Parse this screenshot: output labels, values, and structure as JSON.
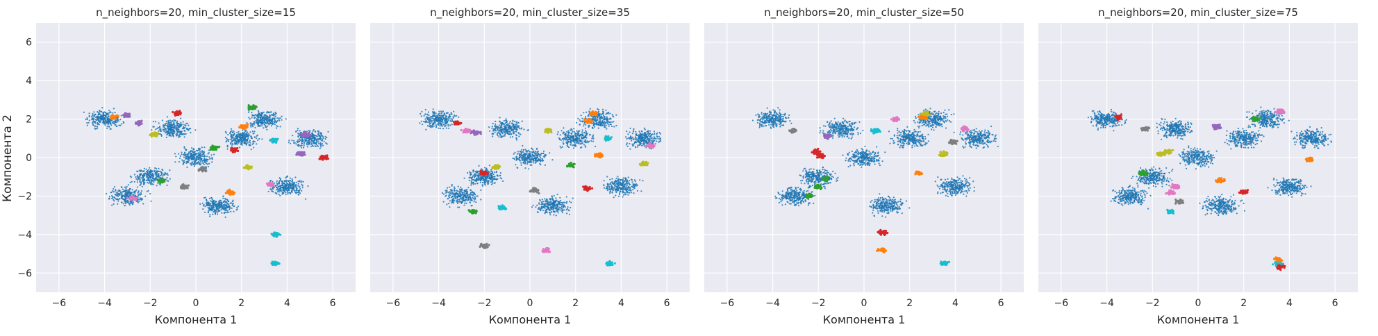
{
  "figure": {
    "ylabel": "Компонента 2",
    "xlabel": "Компонента 1"
  },
  "colors": {
    "background": "#eaeaf2",
    "grid": "#ffffff",
    "text": "#262626",
    "palette": [
      "#1f77b4",
      "#ff7f0e",
      "#2ca02c",
      "#d62728",
      "#9467bd",
      "#8c564b",
      "#e377c2",
      "#7f7f7f",
      "#bcbd22",
      "#17becf"
    ]
  },
  "chart_data": [
    {
      "type": "scatter",
      "title": "n_neighbors=20, min_cluster_size=15",
      "xlabel": "Компонента 1",
      "ylabel": "Компонента 2",
      "xlim": [
        -7,
        7
      ],
      "ylim": [
        -7,
        7
      ],
      "xticks": [
        -6,
        -4,
        -2,
        0,
        2,
        4,
        6
      ],
      "yticks": [
        -6,
        -4,
        -2,
        0,
        2,
        4,
        6
      ],
      "grid": true,
      "clusters": [
        {
          "color": "#1f77b4",
          "points": [
            [
              0,
              0
            ],
            [
              -2,
              -1
            ],
            [
              2,
              1
            ],
            [
              -1,
              1.5
            ],
            [
              3,
              2
            ],
            [
              4,
              -1.5
            ],
            [
              -3,
              -2
            ],
            [
              1,
              -2.5
            ],
            [
              -4,
              2
            ],
            [
              5,
              1
            ]
          ]
        },
        {
          "color": "#9467bd",
          "points": [
            [
              4.8,
              1.2
            ],
            [
              4.6,
              0.2
            ],
            [
              -3,
              2.2
            ],
            [
              -2.5,
              1.8
            ]
          ]
        },
        {
          "color": "#ff7f0e",
          "points": [
            [
              2.1,
              1.6
            ],
            [
              -3.6,
              2.1
            ],
            [
              1.5,
              -1.8
            ]
          ]
        },
        {
          "color": "#2ca02c",
          "points": [
            [
              -1.5,
              -1.2
            ],
            [
              0.8,
              0.5
            ],
            [
              2.5,
              2.6
            ]
          ]
        },
        {
          "color": "#d62728",
          "points": [
            [
              1.7,
              0.4
            ],
            [
              5.6,
              0
            ],
            [
              -0.8,
              2.3
            ]
          ]
        },
        {
          "color": "#17becf",
          "points": [
            [
              3.5,
              -5.5
            ],
            [
              3.4,
              0.9
            ],
            [
              3.5,
              -4
            ]
          ]
        },
        {
          "color": "#bcbd22",
          "points": [
            [
              -1.8,
              1.2
            ],
            [
              2.3,
              -0.5
            ]
          ]
        },
        {
          "color": "#e377c2",
          "points": [
            [
              3.3,
              -1.4
            ],
            [
              -2.8,
              -2.1
            ]
          ]
        },
        {
          "color": "#7f7f7f",
          "points": [
            [
              0.3,
              -0.6
            ],
            [
              -0.5,
              -1.5
            ]
          ]
        }
      ]
    },
    {
      "type": "scatter",
      "title": "n_neighbors=20, min_cluster_size=35",
      "xlabel": "Компонента 1",
      "ylabel": "",
      "xlim": [
        -7,
        7
      ],
      "ylim": [
        -7,
        7
      ],
      "xticks": [
        -6,
        -4,
        -2,
        0,
        2,
        4,
        6
      ],
      "yticks": [
        -6,
        -4,
        -2,
        0,
        2,
        4,
        6
      ],
      "grid": true,
      "clusters": [
        {
          "color": "#1f77b4",
          "points": [
            [
              0,
              0
            ],
            [
              -2,
              -1
            ],
            [
              2,
              1
            ],
            [
              -1,
              1.5
            ],
            [
              3,
              2
            ],
            [
              4,
              -1.5
            ],
            [
              -3,
              -2
            ],
            [
              1,
              -2.5
            ],
            [
              -4,
              2
            ],
            [
              5,
              1
            ]
          ]
        },
        {
          "color": "#ff7f0e",
          "points": [
            [
              2.8,
              2.3
            ],
            [
              2.6,
              1.9
            ],
            [
              3,
              0.1
            ]
          ]
        },
        {
          "color": "#e377c2",
          "points": [
            [
              -2.8,
              1.4
            ],
            [
              5.3,
              0.6
            ],
            [
              0.7,
              -4.8
            ]
          ]
        },
        {
          "color": "#d62728",
          "points": [
            [
              -3.2,
              1.8
            ],
            [
              -2,
              -0.8
            ],
            [
              2.5,
              -1.6
            ]
          ]
        },
        {
          "color": "#bcbd22",
          "points": [
            [
              0.8,
              1.4
            ],
            [
              5,
              -0.3
            ],
            [
              -1.5,
              -0.5
            ]
          ]
        },
        {
          "color": "#17becf",
          "points": [
            [
              3.5,
              -5.5
            ],
            [
              3.4,
              1
            ],
            [
              -1.2,
              -2.6
            ]
          ]
        },
        {
          "color": "#2ca02c",
          "points": [
            [
              -2.5,
              -2.8
            ],
            [
              1.8,
              -0.4
            ]
          ]
        },
        {
          "color": "#7f7f7f",
          "points": [
            [
              0.2,
              -1.7
            ],
            [
              -2,
              -4.6
            ]
          ]
        },
        {
          "color": "#9467bd",
          "points": [
            [
              -2.4,
              1.3
            ]
          ]
        }
      ]
    },
    {
      "type": "scatter",
      "title": "n_neighbors=20, min_cluster_size=50",
      "xlabel": "Компонента 1",
      "ylabel": "",
      "xlim": [
        -7,
        7
      ],
      "ylim": [
        -7,
        7
      ],
      "xticks": [
        -6,
        -4,
        -2,
        0,
        2,
        4,
        6
      ],
      "yticks": [
        -6,
        -4,
        -2,
        0,
        2,
        4,
        6
      ],
      "grid": true,
      "clusters": [
        {
          "color": "#1f77b4",
          "points": [
            [
              0,
              0
            ],
            [
              -2,
              -1
            ],
            [
              2,
              1
            ],
            [
              -1,
              1.5
            ],
            [
              3,
              2
            ],
            [
              4,
              -1.5
            ],
            [
              -3,
              -2
            ],
            [
              1,
              -2.5
            ],
            [
              -4,
              2
            ],
            [
              5,
              1
            ]
          ]
        },
        {
          "color": "#d62728",
          "points": [
            [
              -2.1,
              0.3
            ],
            [
              -1.9,
              0.1
            ],
            [
              0.8,
              -3.9
            ]
          ]
        },
        {
          "color": "#2ca02c",
          "points": [
            [
              -2,
              -1.5
            ],
            [
              -1.7,
              -1.1
            ],
            [
              -2.4,
              -2
            ]
          ]
        },
        {
          "color": "#7f7f7f",
          "points": [
            [
              -3.1,
              1.4
            ],
            [
              3.9,
              0.8
            ]
          ]
        },
        {
          "color": "#ff7f0e",
          "points": [
            [
              2.6,
              2.1
            ],
            [
              2.4,
              -0.8
            ],
            [
              0.8,
              -4.8
            ]
          ]
        },
        {
          "color": "#bcbd22",
          "points": [
            [
              2.7,
              2.3
            ],
            [
              3.5,
              0.2
            ]
          ]
        },
        {
          "color": "#e377c2",
          "points": [
            [
              1.4,
              2
            ],
            [
              4.4,
              1.5
            ]
          ]
        },
        {
          "color": "#17becf",
          "points": [
            [
              3.5,
              -5.5
            ],
            [
              0.5,
              1.4
            ]
          ]
        },
        {
          "color": "#9467bd",
          "points": [
            [
              -1.6,
              1.1
            ]
          ]
        }
      ]
    },
    {
      "type": "scatter",
      "title": "n_neighbors=20, min_cluster_size=75",
      "xlabel": "Компонента 1",
      "ylabel": "",
      "xlim": [
        -7,
        7
      ],
      "ylim": [
        -7,
        7
      ],
      "xticks": [
        -6,
        -4,
        -2,
        0,
        2,
        4,
        6
      ],
      "yticks": [
        -6,
        -4,
        -2,
        0,
        2,
        4,
        6
      ],
      "grid": true,
      "clusters": [
        {
          "color": "#1f77b4",
          "points": [
            [
              0,
              0
            ],
            [
              -2,
              -1
            ],
            [
              2,
              1
            ],
            [
              -1,
              1.5
            ],
            [
              3,
              2
            ],
            [
              4,
              -1.5
            ],
            [
              -3,
              -2
            ],
            [
              1,
              -2.5
            ],
            [
              -4,
              2
            ],
            [
              5,
              1
            ]
          ]
        },
        {
          "color": "#e377c2",
          "points": [
            [
              -1.2,
              -1.8
            ],
            [
              -1,
              -1.5
            ],
            [
              3.6,
              2.4
            ]
          ]
        },
        {
          "color": "#bcbd22",
          "points": [
            [
              -1.6,
              0.2
            ],
            [
              -1.3,
              0.3
            ]
          ]
        },
        {
          "color": "#17becf",
          "points": [
            [
              -1.2,
              -2.8
            ],
            [
              3.5,
              -5.5
            ]
          ]
        },
        {
          "color": "#ff7f0e",
          "points": [
            [
              1,
              -1.2
            ],
            [
              3.5,
              -5.3
            ],
            [
              4.9,
              -0.1
            ]
          ]
        },
        {
          "color": "#d62728",
          "points": [
            [
              -3.5,
              2.1
            ],
            [
              2,
              -1.8
            ],
            [
              3.6,
              -5.7
            ]
          ]
        },
        {
          "color": "#2ca02c",
          "points": [
            [
              -2.4,
              -0.8
            ],
            [
              2.5,
              2
            ]
          ]
        },
        {
          "color": "#7f7f7f",
          "points": [
            [
              -2.3,
              1.5
            ],
            [
              -0.8,
              -2.3
            ]
          ]
        },
        {
          "color": "#9467bd",
          "points": [
            [
              0.8,
              1.6
            ]
          ]
        }
      ]
    }
  ]
}
